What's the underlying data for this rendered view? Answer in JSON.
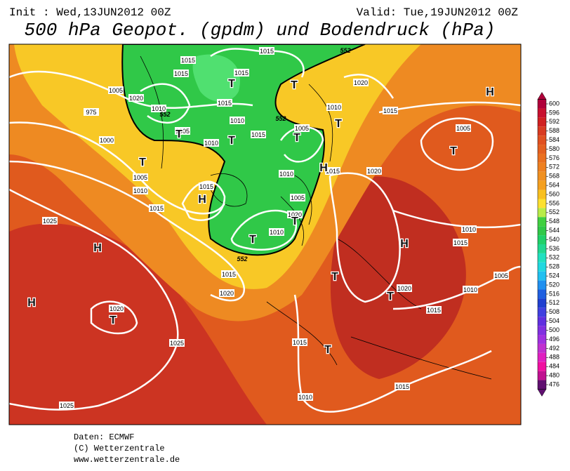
{
  "header": {
    "init": "Init : Wed,13JUN2012 00Z",
    "valid": "Valid: Tue,19JUN2012 00Z",
    "title": "500 hPa Geopot. (gpdm) und Bodendruck (hPa)"
  },
  "map": {
    "isobar_labels": [
      "1015",
      "1015",
      "1015",
      "1015",
      "1005",
      "1020",
      "1010",
      "975",
      "1005",
      "1015",
      "1010",
      "1015",
      "1005",
      "1010",
      "1020",
      "1015",
      "1010",
      "1000",
      "1005",
      "1010",
      "1015",
      "1015",
      "1010",
      "1005",
      "1020",
      "1010",
      "1015",
      "1020",
      "1025",
      "1010",
      "1015",
      "1015",
      "1020",
      "1020",
      "1010",
      "1015",
      "1005",
      "1020",
      "1025",
      "1015",
      "1025",
      "1010",
      "1015",
      "1005"
    ],
    "contour_labels": [
      "552",
      "552",
      "552",
      "552"
    ],
    "pressure_centers": [
      "H",
      "H",
      "H",
      "H",
      "H",
      "H",
      "T",
      "T",
      "T",
      "T",
      "T",
      "T",
      "T",
      "T",
      "T",
      "T",
      "T",
      "T",
      "T",
      "T"
    ]
  },
  "colorbar": {
    "ticks": [
      600,
      596,
      592,
      588,
      584,
      580,
      576,
      572,
      568,
      564,
      560,
      556,
      552,
      548,
      544,
      540,
      536,
      532,
      528,
      524,
      520,
      516,
      512,
      508,
      504,
      500,
      496,
      492,
      488,
      484,
      480,
      476
    ],
    "colors": [
      "#b0003a",
      "#c8102e",
      "#d02020",
      "#d83a20",
      "#e05020",
      "#e46020",
      "#ea7020",
      "#ee8020",
      "#f09020",
      "#f4a020",
      "#f8c020",
      "#fce030",
      "#b8ec48",
      "#40d040",
      "#30c848",
      "#20d068",
      "#20d890",
      "#20e0c0",
      "#20d8e0",
      "#20c0f0",
      "#2090f0",
      "#2060e0",
      "#2040d0",
      "#4040e0",
      "#6030e0",
      "#8030e0",
      "#a030e0",
      "#c030d0",
      "#e020c0",
      "#f010a0",
      "#c01090",
      "#601070"
    ]
  },
  "footer": {
    "lines": [
      "Daten: ECMWF",
      "(C) Wetterzentrale",
      "www.wetterzentrale.de"
    ]
  }
}
